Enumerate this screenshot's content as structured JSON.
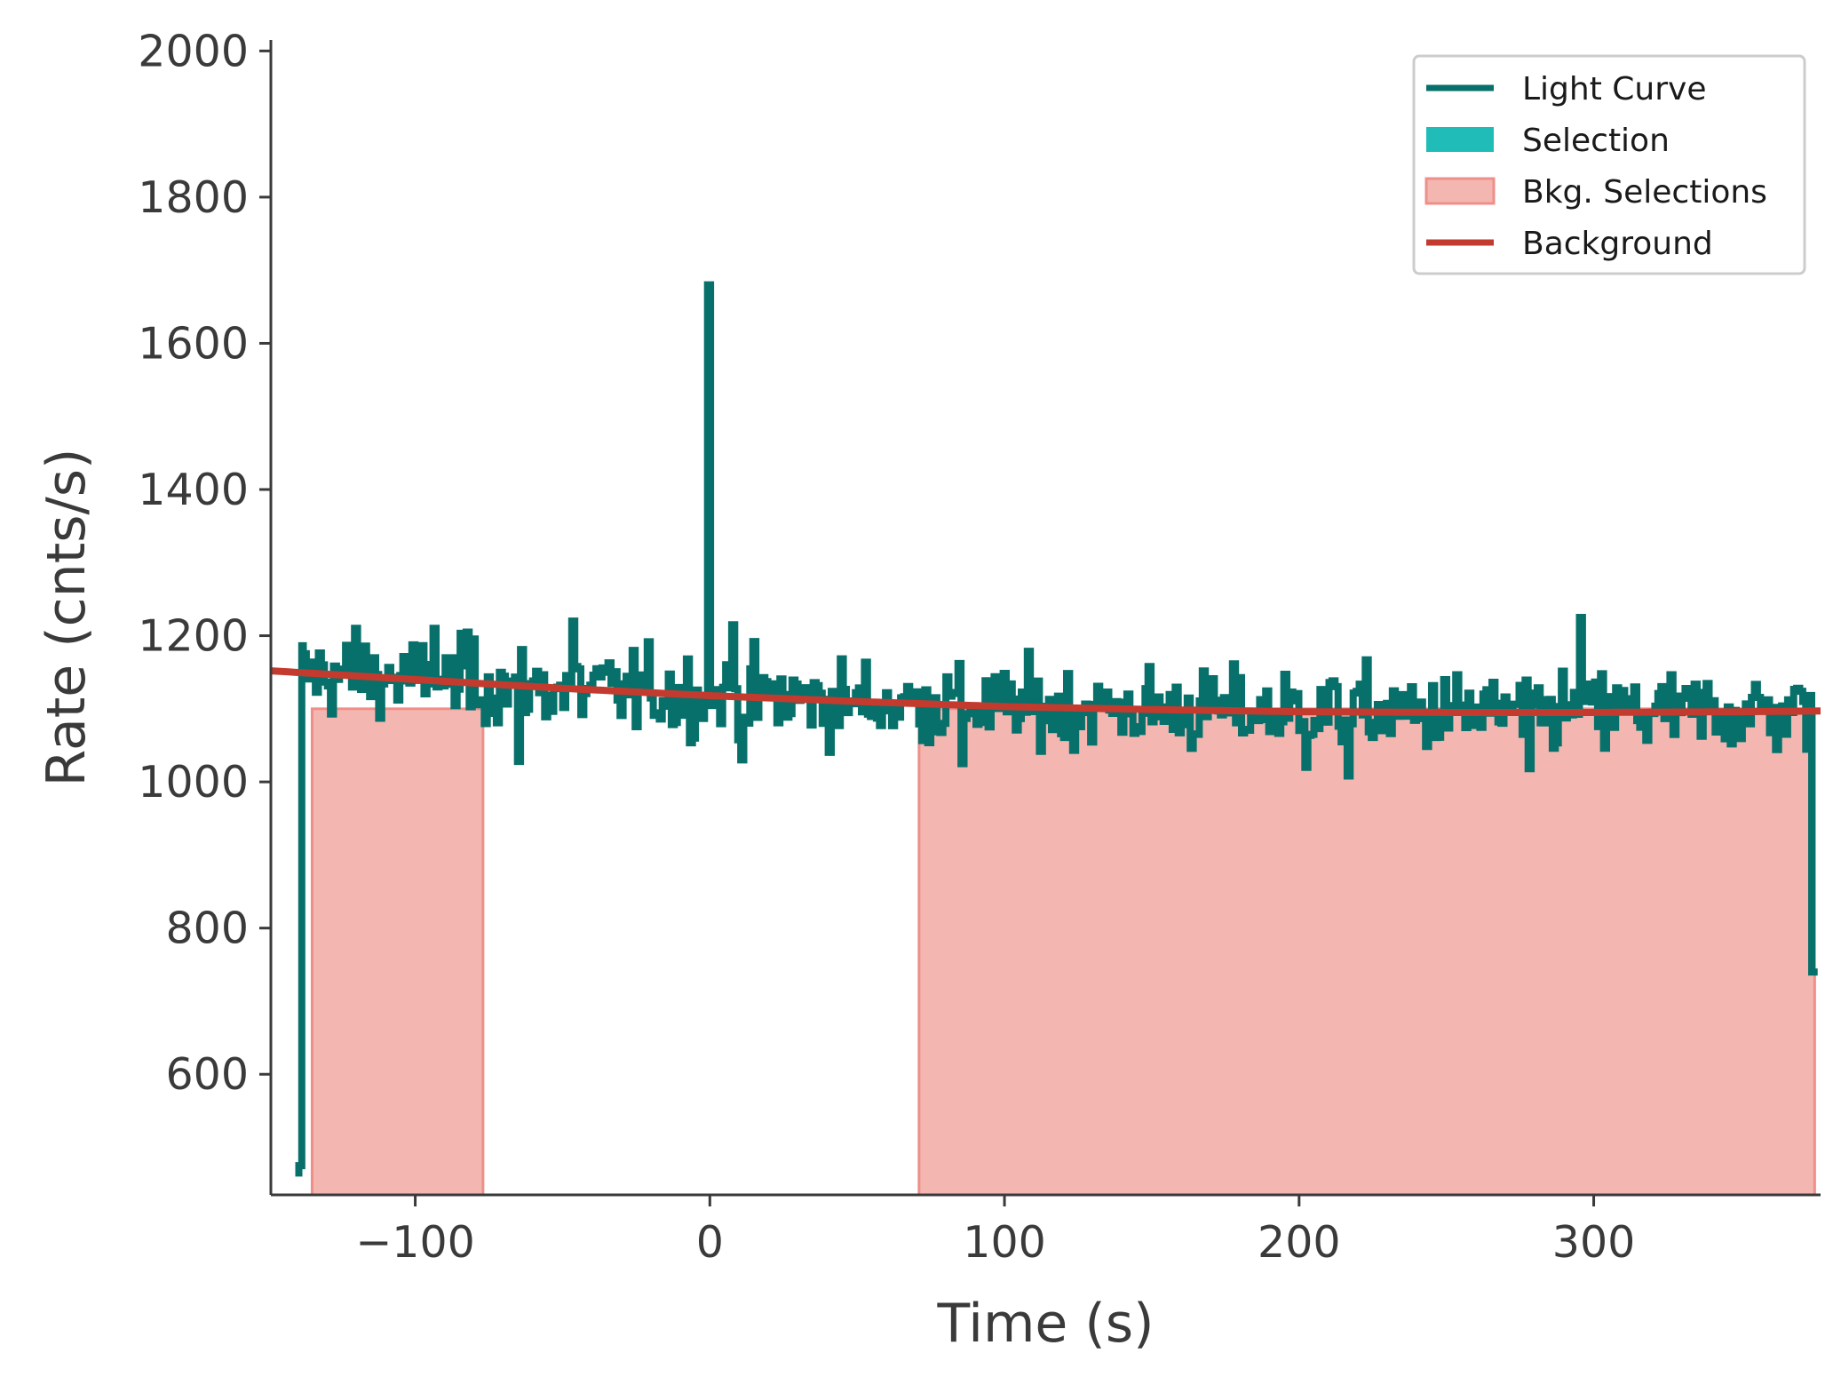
{
  "chart_data": {
    "type": "line",
    "xlabel": "Time (s)",
    "ylabel": "Rate (cnts/s)",
    "xlim": [
      -149,
      377
    ],
    "ylim": [
      435,
      2015
    ],
    "xticks": [
      -100,
      0,
      100,
      200,
      300
    ],
    "xtick_labels": [
      "−100",
      "0",
      "100",
      "200",
      "300"
    ],
    "yticks": [
      600,
      800,
      1000,
      1200,
      1400,
      1600,
      1800,
      2000
    ],
    "ytick_labels": [
      "600",
      "800",
      "1000",
      "1200",
      "1400",
      "1600",
      "1800",
      "2000"
    ],
    "grid": false,
    "legend_position": "upper right",
    "legend": [
      {
        "label": "Light Curve",
        "kind": "line",
        "color": "#07706a"
      },
      {
        "label": "Selection",
        "kind": "patch",
        "color": "#20bdb8"
      },
      {
        "label": "Bkg. Selections",
        "kind": "patch",
        "color": "#f4b6b1"
      },
      {
        "label": "Background",
        "kind": "line",
        "color": "#c23b2e"
      }
    ],
    "colors": {
      "light_curve": "#07706a",
      "background": "#c23b2e",
      "bkg_fill": "#f4b6b1",
      "bkg_edge": "#ee8f89"
    },
    "bkg_selections": [
      [
        -135,
        -77
      ],
      [
        71,
        375
      ]
    ],
    "background_model": {
      "x": [
        -149,
        -100,
        -50,
        0,
        50,
        100,
        150,
        200,
        250,
        300,
        350,
        377
      ],
      "y": [
        1152,
        1140,
        1128,
        1118,
        1110,
        1103,
        1099,
        1096,
        1095,
        1095,
        1096,
        1097
      ]
    },
    "light_curve": {
      "x_start": -138,
      "x_end": 375,
      "step": 1.024,
      "start_values": [
        {
          "x": -139.5,
          "y": 460
        },
        {
          "x": -138.5,
          "y": 475
        }
      ],
      "end_value": 740,
      "spikes": [
        {
          "x": 0,
          "y": 1680
        },
        {
          "x": 296,
          "y": 1225
        },
        {
          "x": 8,
          "y": 1215
        },
        {
          "x": -46,
          "y": 1220
        },
        {
          "x": -120,
          "y": 1210
        },
        {
          "x": -82,
          "y": 1205
        },
        {
          "x": -93,
          "y": 1210
        },
        {
          "x": 11,
          "y": 1030
        },
        {
          "x": -64,
          "y": 1028
        },
        {
          "x": 86,
          "y": 1025
        },
        {
          "x": 203,
          "y": 1020
        },
        {
          "x": 217,
          "y": 1008
        },
        {
          "x": 279,
          "y": 1018
        }
      ],
      "noise_std": 28
    }
  }
}
